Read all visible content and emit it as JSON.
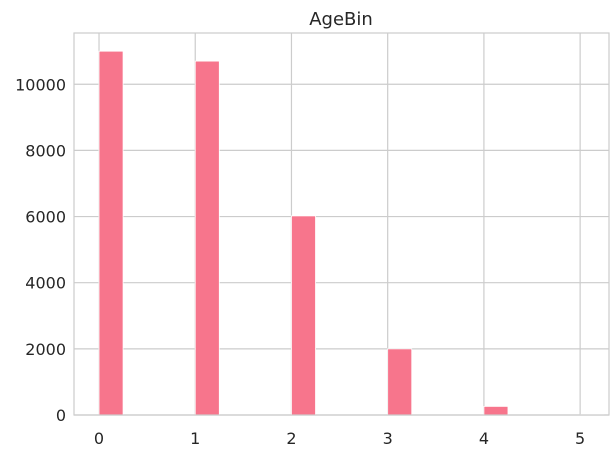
{
  "chart_data": {
    "type": "bar",
    "title": "AgeBin",
    "xlabel": "",
    "ylabel": "",
    "bins": [
      {
        "x_start": 0.0,
        "x_end": 0.25,
        "count": 11000
      },
      {
        "x_start": 1.0,
        "x_end": 1.25,
        "count": 10700
      },
      {
        "x_start": 2.0,
        "x_end": 2.25,
        "count": 6020
      },
      {
        "x_start": 3.0,
        "x_end": 3.25,
        "count": 2000
      },
      {
        "x_start": 4.0,
        "x_end": 4.25,
        "count": 260
      },
      {
        "x_start": 5.0,
        "x_end": 5.25,
        "count": 10
      }
    ],
    "x_ticks": [
      0,
      1,
      2,
      3,
      4,
      5
    ],
    "y_ticks": [
      0,
      2000,
      4000,
      6000,
      8000,
      10000
    ],
    "xlim": [
      -0.26,
      5.3
    ],
    "ylim": [
      0,
      11550
    ],
    "grid": true,
    "bar_color": "#f7758c",
    "grid_color": "#cccccc"
  }
}
